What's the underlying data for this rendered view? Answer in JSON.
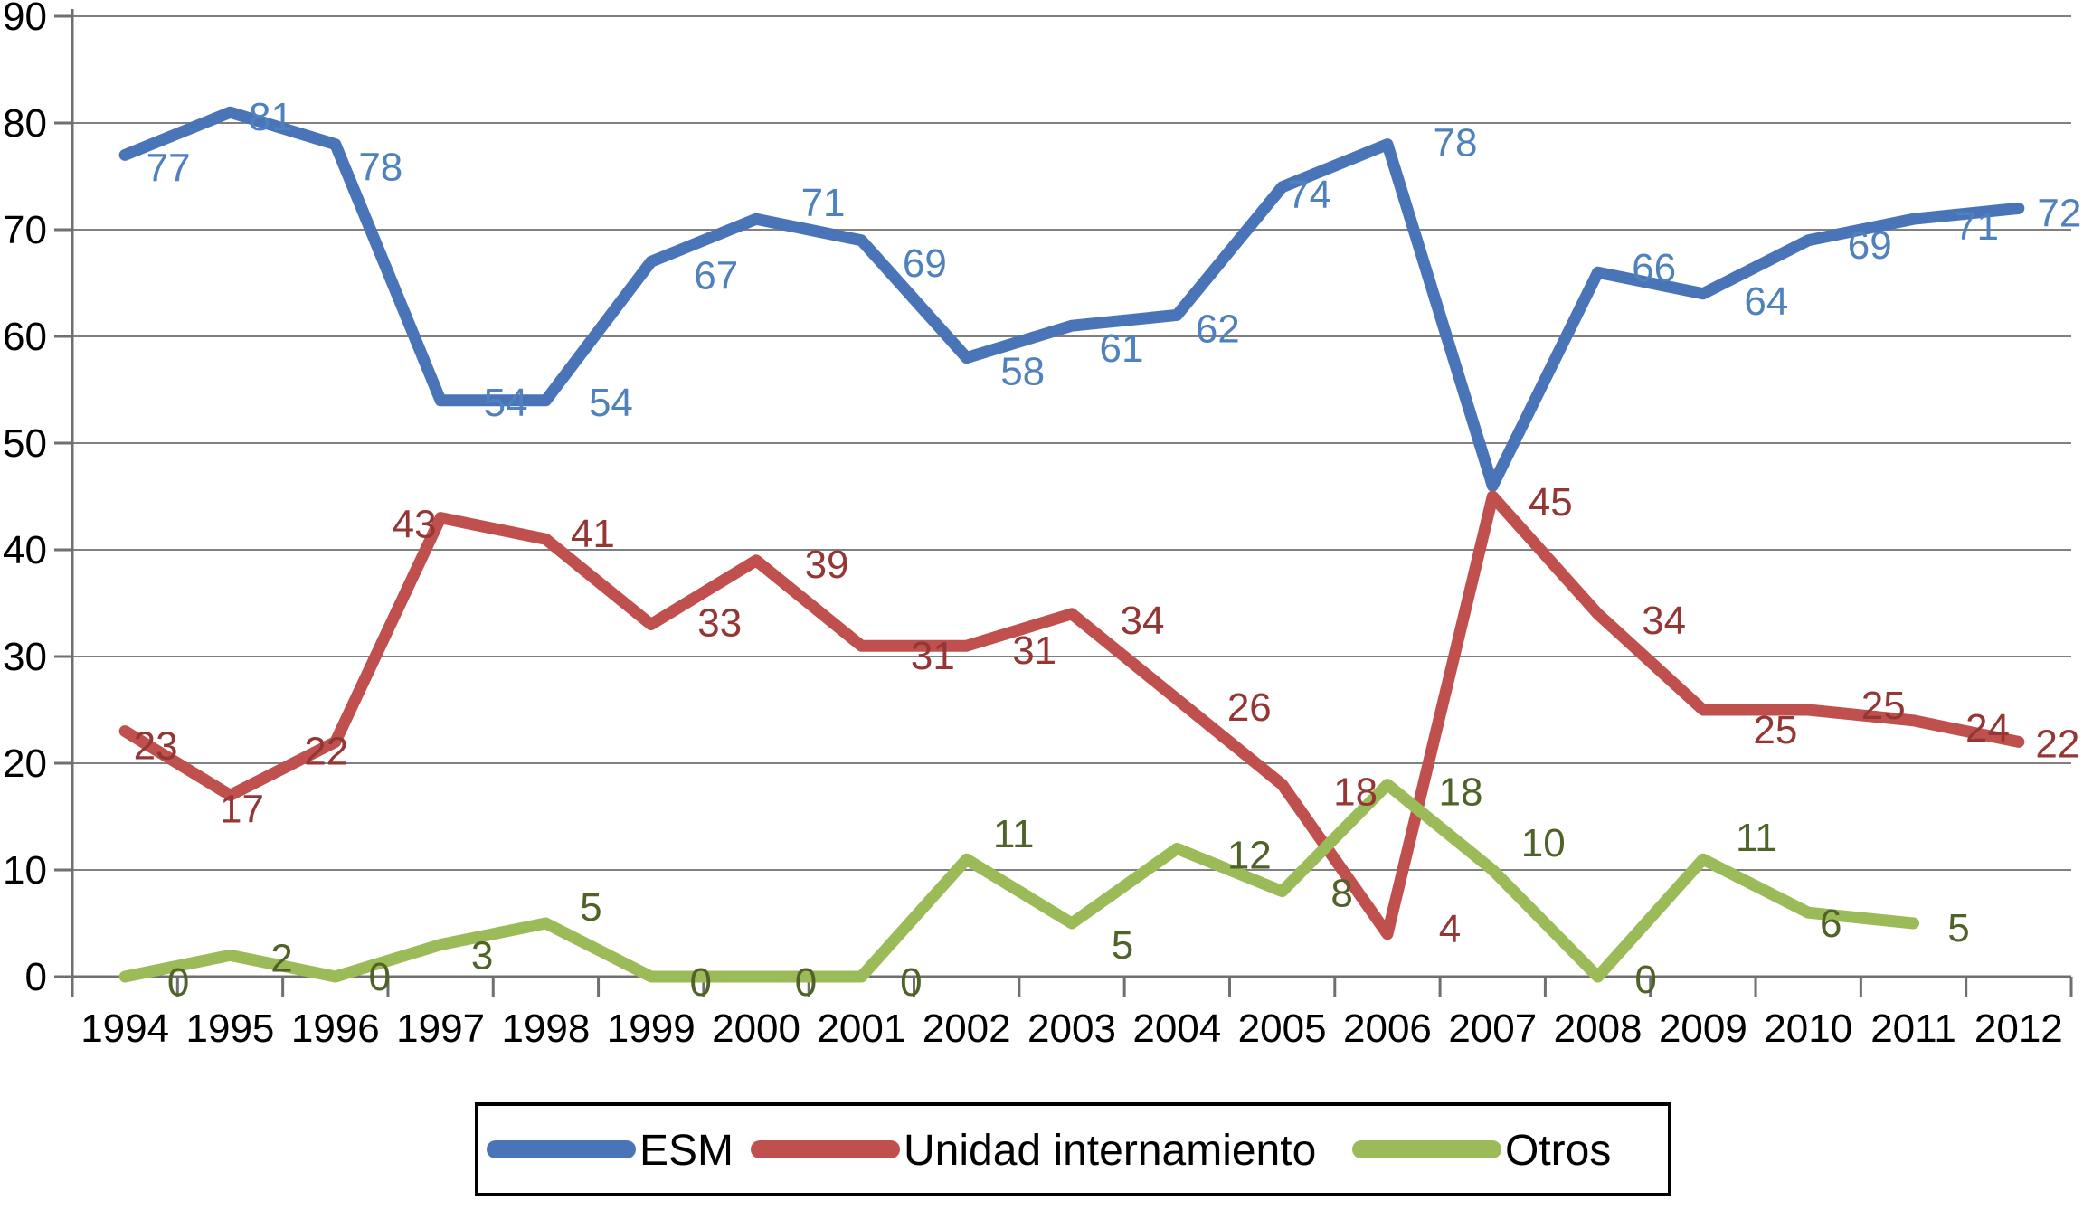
{
  "chart_data": {
    "type": "line",
    "title": "",
    "xlabel": "",
    "ylabel": "",
    "ylim": [
      0,
      90
    ],
    "ytick_step": 10,
    "grid": true,
    "legend_position": "bottom",
    "background": "#ffffff",
    "gridline_color": "#808080",
    "axis_color": "#6f6f6f",
    "axis_text_color": "#000000",
    "yticks": [
      "90",
      "80",
      "70",
      "60",
      "50",
      "40",
      "30",
      "20",
      "10",
      "0"
    ],
    "xticks": [
      "1994",
      "1995",
      "1996",
      "1997",
      "1998",
      "1999",
      "2000",
      "2001",
      "2002",
      "2003",
      "2004",
      "2005",
      "2006",
      "2007",
      "2008",
      "2009",
      "2010",
      "2011",
      "2012"
    ],
    "x": [
      1994,
      1995,
      1996,
      1997,
      1998,
      1999,
      2000,
      2001,
      2002,
      2003,
      2004,
      2005,
      2006,
      2007,
      2008,
      2009,
      2010,
      2011,
      2012
    ],
    "series": [
      {
        "name": "ESM",
        "color": "#4A74B8",
        "label_color": "#4F81BD",
        "values": [
          77,
          81,
          78,
          54,
          54,
          67,
          71,
          69,
          58,
          61,
          62,
          74,
          78,
          46,
          66,
          64,
          69,
          71,
          72
        ],
        "labels": [
          "77",
          "81",
          "78",
          "54",
          "54",
          "67",
          "71",
          "69",
          "58",
          "61",
          "62",
          "74",
          "78",
          "",
          "66",
          "64",
          "69",
          "71",
          "72"
        ],
        "label_offsets": [
          [
            48,
            14
          ],
          [
            45,
            5
          ],
          [
            50,
            25
          ],
          [
            72,
            2
          ],
          [
            72,
            2
          ],
          [
            72,
            15
          ],
          [
            74,
            -18
          ],
          [
            70,
            25
          ],
          [
            62,
            15
          ],
          [
            55,
            25
          ],
          [
            45,
            15
          ],
          [
            30,
            8
          ],
          [
            75,
            -2
          ],
          [
            0,
            0
          ],
          [
            62,
            -5
          ],
          [
            70,
            8
          ],
          [
            68,
            5
          ],
          [
            70,
            8
          ],
          [
            45,
            5
          ]
        ]
      },
      {
        "name": "Unidad internamiento",
        "color": "#C0504D",
        "label_color": "#943634",
        "values": [
          23,
          17,
          22,
          43,
          41,
          33,
          39,
          31,
          31,
          34,
          26,
          18,
          4,
          45,
          34,
          25,
          25,
          24,
          22
        ],
        "labels": [
          "23",
          "17",
          "22",
          "43",
          "41",
          "33",
          "39",
          "31",
          "31",
          "34",
          "26",
          "18",
          "4",
          "45",
          "34",
          "25",
          "25",
          "24",
          "22"
        ],
        "label_offsets": [
          [
            34,
            16
          ],
          [
            13,
            15
          ],
          [
            -10,
            10
          ],
          [
            -29,
            7
          ],
          [
            52,
            -6
          ],
          [
            76,
            -2
          ],
          [
            78,
            4
          ],
          [
            79,
            11
          ],
          [
            75,
            5
          ],
          [
            78,
            7
          ],
          [
            80,
            9
          ],
          [
            81,
            8
          ],
          [
            69,
            -6
          ],
          [
            64,
            6
          ],
          [
            73,
            7
          ],
          [
            80,
            22
          ],
          [
            83,
            -5
          ],
          [
            82,
            8
          ],
          [
            43,
            2
          ]
        ]
      },
      {
        "name": "Otros",
        "color": "#9BBB59",
        "label_color": "#4F6228",
        "values": [
          0,
          2,
          0,
          3,
          5,
          0,
          0,
          0,
          11,
          5,
          12,
          8,
          18,
          10,
          0,
          11,
          6,
          5,
          null
        ],
        "labels": [
          "0",
          "2",
          "0",
          "3",
          "5",
          "0",
          "0",
          "0",
          "11",
          "5",
          "12",
          "8",
          "18",
          "10",
          "0",
          "11",
          "6",
          "5",
          ""
        ],
        "label_offsets": [
          [
            59,
            6
          ],
          [
            57,
            3
          ],
          [
            49,
            0
          ],
          [
            46,
            12
          ],
          [
            50,
            -18
          ],
          [
            55,
            6
          ],
          [
            55,
            6
          ],
          [
            55,
            6
          ],
          [
            52,
            -28
          ],
          [
            56,
            24
          ],
          [
            80,
            7
          ],
          [
            66,
            2
          ],
          [
            81,
            8
          ],
          [
            56,
            -30
          ],
          [
            53,
            3
          ],
          [
            59,
            -24
          ],
          [
            25,
            12
          ],
          [
            50,
            5
          ],
          [
            0,
            0
          ]
        ]
      }
    ],
    "legend": {
      "border_color": "#000000",
      "fill": "#ffffff",
      "entries": [
        "ESM",
        "Unidad internamiento",
        "Otros"
      ]
    }
  }
}
